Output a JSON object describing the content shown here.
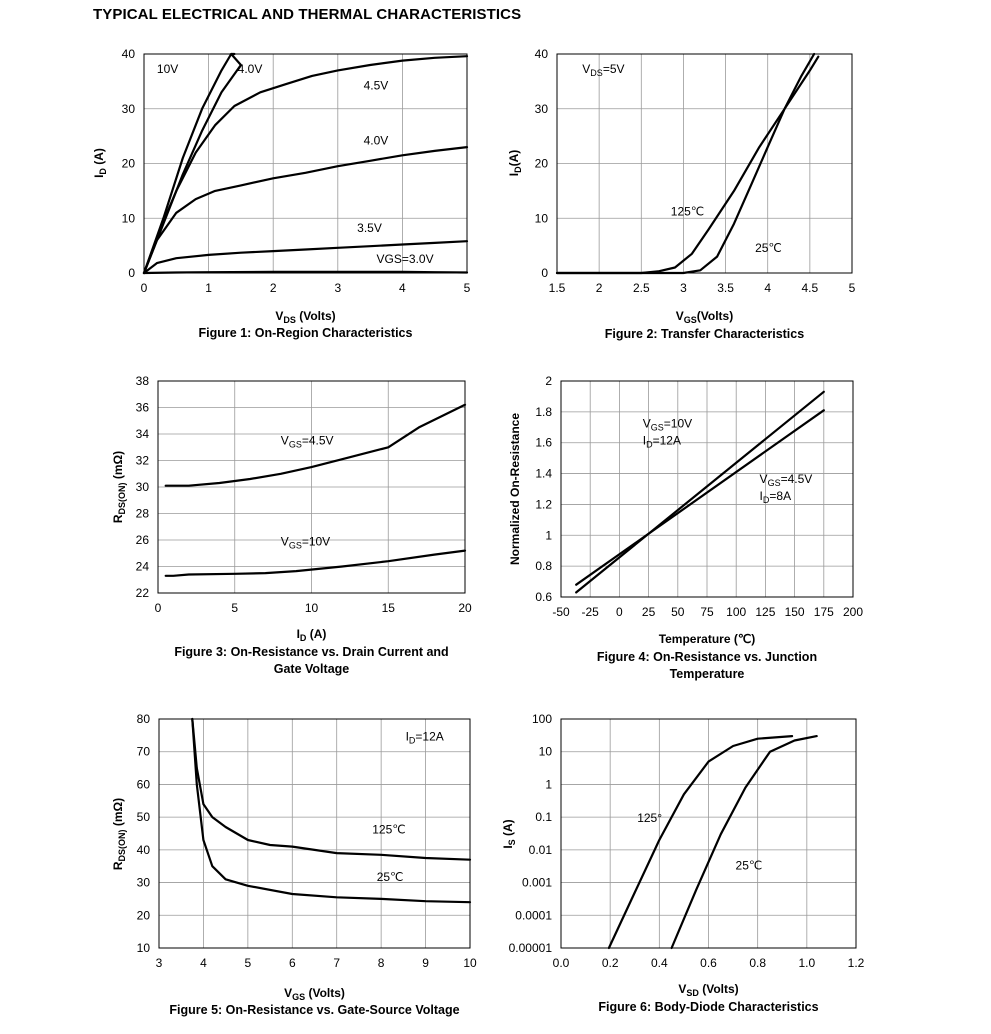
{
  "page_title": "TYPICAL ELECTRICAL AND THERMAL CHARACTERISTICS",
  "chart_data": [
    {
      "id": "fig1",
      "type": "line",
      "caption": [
        "Figure 1: On-Region Characteristics"
      ],
      "xlabel": {
        "main": "V",
        "sub": "DS",
        "rest": " (Volts)"
      },
      "ylabel": {
        "main": "I",
        "sub": "D",
        "rest": " (A)"
      },
      "xlim": [
        0,
        5
      ],
      "ylim": [
        0,
        40
      ],
      "xticks": [
        0,
        1,
        2,
        3,
        4,
        5
      ],
      "yticks": [
        0,
        10,
        20,
        30,
        40
      ],
      "grid": true,
      "series": [
        {
          "points": [
            [
              0,
              0
            ],
            [
              0.3,
              10
            ],
            [
              0.6,
              21
            ],
            [
              0.9,
              30
            ],
            [
              1.2,
              37
            ],
            [
              1.35,
              40
            ]
          ]
        },
        {
          "points": [
            [
              0,
              0
            ],
            [
              0.3,
              9
            ],
            [
              0.6,
              18
            ],
            [
              0.9,
              26
            ],
            [
              1.2,
              33
            ],
            [
              1.5,
              38
            ],
            [
              1.35,
              40
            ],
            [
              1.4,
              40
            ]
          ]
        },
        {
          "points": [
            [
              0,
              0
            ],
            [
              0.25,
              8
            ],
            [
              0.5,
              15
            ],
            [
              0.8,
              22
            ],
            [
              1.1,
              27
            ],
            [
              1.4,
              30.5
            ],
            [
              1.8,
              33
            ],
            [
              2.2,
              34.5
            ],
            [
              2.6,
              36
            ],
            [
              3,
              37
            ],
            [
              3.5,
              38
            ],
            [
              4,
              38.8
            ],
            [
              4.5,
              39.3
            ],
            [
              5,
              39.6
            ]
          ]
        },
        {
          "points": [
            [
              0,
              0
            ],
            [
              0.2,
              6
            ],
            [
              0.5,
              11
            ],
            [
              0.8,
              13.5
            ],
            [
              1.1,
              15
            ],
            [
              1.5,
              16
            ],
            [
              2,
              17.3
            ],
            [
              2.5,
              18.3
            ],
            [
              3,
              19.5
            ],
            [
              3.5,
              20.5
            ],
            [
              4,
              21.5
            ],
            [
              4.5,
              22.3
            ],
            [
              5,
              23
            ]
          ]
        },
        {
          "points": [
            [
              0,
              0
            ],
            [
              0.2,
              1.8
            ],
            [
              0.5,
              2.7
            ],
            [
              1,
              3.3
            ],
            [
              1.5,
              3.7
            ],
            [
              2,
              4
            ],
            [
              2.5,
              4.3
            ],
            [
              3,
              4.6
            ],
            [
              3.5,
              4.9
            ],
            [
              4,
              5.2
            ],
            [
              4.5,
              5.5
            ],
            [
              5,
              5.8
            ]
          ]
        },
        {
          "points": [
            [
              0,
              0
            ],
            [
              0.5,
              0.1
            ],
            [
              1,
              0.15
            ],
            [
              2,
              0.2
            ],
            [
              3,
              0.2
            ],
            [
              4,
              0.2
            ],
            [
              4.5,
              0.15
            ],
            [
              5,
              0.1
            ]
          ]
        }
      ],
      "annotations": [
        {
          "text": "10V",
          "x": 0.2,
          "y": 36.5
        },
        {
          "text": "4.0V",
          "x": 1.45,
          "y": 36.5
        },
        {
          "text": "4.5V",
          "x": 3.4,
          "y": 33.5
        },
        {
          "text": "4.0V",
          "x": 3.4,
          "y": 23.5
        },
        {
          "text": "3.5V",
          "x": 3.3,
          "y": 7.5
        },
        {
          "text": "VGS=3.0V",
          "x": 3.6,
          "y": 1.8
        }
      ]
    },
    {
      "id": "fig2",
      "type": "line",
      "caption": [
        "Figure 2: Transfer Characteristics"
      ],
      "xlabel": {
        "main": "V",
        "sub": "GS",
        "rest": "(Volts)"
      },
      "ylabel": {
        "main": "I",
        "sub": "D",
        "rest": "(A)"
      },
      "xlim": [
        1.5,
        5
      ],
      "ylim": [
        0,
        40
      ],
      "xticks": [
        1.5,
        2,
        2.5,
        3,
        3.5,
        4,
        4.5,
        5
      ],
      "yticks": [
        0,
        10,
        20,
        30,
        40
      ],
      "xticklabels": [
        "1.5",
        "2",
        "2.5",
        "3",
        "3.5",
        "4",
        "4.5",
        "5"
      ],
      "grid": true,
      "series": [
        {
          "points": [
            [
              1.5,
              0
            ],
            [
              2.5,
              0
            ],
            [
              2.7,
              0.3
            ],
            [
              2.9,
              1
            ],
            [
              3.1,
              3.5
            ],
            [
              3.3,
              8
            ],
            [
              3.6,
              15
            ],
            [
              3.9,
              23
            ],
            [
              4.2,
              30
            ],
            [
              4.5,
              37
            ],
            [
              4.6,
              39.5
            ]
          ]
        },
        {
          "points": [
            [
              1.5,
              0
            ],
            [
              3,
              0
            ],
            [
              3.2,
              0.5
            ],
            [
              3.4,
              3
            ],
            [
              3.6,
              9
            ],
            [
              3.8,
              16
            ],
            [
              4,
              23
            ],
            [
              4.2,
              30
            ],
            [
              4.4,
              36
            ],
            [
              4.55,
              40
            ]
          ]
        }
      ],
      "annotations": [
        {
          "text": "V",
          "sub": "DS",
          "tail": "=5V",
          "x": 1.8,
          "y": 36.5
        },
        {
          "text": "125℃",
          "x": 2.85,
          "y": 10.5
        },
        {
          "text": "25℃",
          "x": 3.85,
          "y": 3.8
        }
      ]
    },
    {
      "id": "fig3",
      "type": "line",
      "caption": [
        "Figure 3: On-Resistance vs. Drain Current and",
        "Gate Voltage"
      ],
      "xlabel": {
        "main": "I",
        "sub": "D",
        "rest": " (A)"
      },
      "ylabel": {
        "main": "R",
        "sub": "DS(ON)",
        "rest": " (mΩ)"
      },
      "xlim": [
        0,
        20
      ],
      "ylim": [
        22,
        38
      ],
      "xticks": [
        0,
        5,
        10,
        15,
        20
      ],
      "yticks": [
        22,
        24,
        26,
        28,
        30,
        32,
        34,
        36,
        38
      ],
      "grid": true,
      "series": [
        {
          "points": [
            [
              0.5,
              30.1
            ],
            [
              2,
              30.1
            ],
            [
              4,
              30.3
            ],
            [
              6,
              30.6
            ],
            [
              8,
              31
            ],
            [
              10,
              31.5
            ],
            [
              12,
              32.1
            ],
            [
              15,
              33
            ],
            [
              17,
              34.5
            ],
            [
              20,
              36.2
            ]
          ]
        },
        {
          "points": [
            [
              0.5,
              23.3
            ],
            [
              1,
              23.3
            ],
            [
              2,
              23.4
            ],
            [
              5,
              23.45
            ],
            [
              7,
              23.5
            ],
            [
              9,
              23.65
            ],
            [
              12,
              24
            ],
            [
              15,
              24.4
            ],
            [
              18,
              24.9
            ],
            [
              20,
              25.2
            ]
          ]
        }
      ],
      "annotations": [
        {
          "text": "V",
          "sub": "GS",
          "tail": "=4.5V",
          "x": 8,
          "y": 33.2
        },
        {
          "text": "V",
          "sub": "GS",
          "tail": "=10V",
          "x": 8,
          "y": 25.6
        }
      ]
    },
    {
      "id": "fig4",
      "type": "line",
      "caption": [
        "Figure 4: On-Resistance vs. Junction",
        "Temperature"
      ],
      "xlabel": {
        "main": "Temperature (℃)",
        "sub": "",
        "rest": ""
      },
      "ylabel": {
        "main": "Normalized On-Resistance",
        "sub": "",
        "rest": ""
      },
      "xlim": [
        -50,
        200
      ],
      "ylim": [
        0.6,
        2
      ],
      "xticks": [
        -50,
        -25,
        0,
        25,
        50,
        75,
        100,
        125,
        150,
        175,
        200
      ],
      "yticks": [
        0.6,
        0.8,
        1,
        1.2,
        1.4,
        1.6,
        1.8,
        2
      ],
      "yticklabels": [
        "0.6",
        "0.8",
        "1",
        "1.2",
        "1.4",
        "1.6",
        "1.8",
        "2"
      ],
      "grid": true,
      "series": [
        {
          "points": [
            [
              -37,
              0.63
            ],
            [
              175,
              1.93
            ]
          ]
        },
        {
          "points": [
            [
              -37,
              0.68
            ],
            [
              175,
              1.81
            ]
          ]
        }
      ],
      "annotations": [
        {
          "text": "V",
          "sub": "GS",
          "tail": "=10V",
          "x": 20,
          "y": 1.7
        },
        {
          "text": "I",
          "sub": "D",
          "tail": "=12A",
          "x": 20,
          "y": 1.59
        },
        {
          "text": "V",
          "sub": "GS",
          "tail": "=4.5V",
          "x": 120,
          "y": 1.34
        },
        {
          "text": "I",
          "sub": "D",
          "tail": "=8A",
          "x": 120,
          "y": 1.23
        }
      ]
    },
    {
      "id": "fig5",
      "type": "line",
      "caption": [
        "Figure 5: On-Resistance vs. Gate-Source Voltage"
      ],
      "xlabel": {
        "main": "V",
        "sub": "GS",
        "rest": " (Volts)"
      },
      "ylabel": {
        "main": "R",
        "sub": "DS(ON)",
        "rest": " (mΩ)"
      },
      "xlim": [
        3,
        10
      ],
      "ylim": [
        10,
        80
      ],
      "xticks": [
        3,
        4,
        5,
        6,
        7,
        8,
        9,
        10
      ],
      "yticks": [
        10,
        20,
        30,
        40,
        50,
        60,
        70,
        80
      ],
      "grid": true,
      "series": [
        {
          "points": [
            [
              3.75,
              80
            ],
            [
              3.85,
              65
            ],
            [
              4,
              54
            ],
            [
              4.2,
              50
            ],
            [
              4.5,
              47
            ],
            [
              5,
              43
            ],
            [
              5.5,
              41.5
            ],
            [
              6,
              41
            ],
            [
              7,
              39
            ],
            [
              8,
              38.5
            ],
            [
              9,
              37.5
            ],
            [
              10,
              37
            ]
          ]
        },
        {
          "points": [
            [
              3.75,
              80
            ],
            [
              3.85,
              60
            ],
            [
              4,
              43
            ],
            [
              4.2,
              35
            ],
            [
              4.5,
              31
            ],
            [
              5,
              29
            ],
            [
              6,
              26.5
            ],
            [
              7,
              25.5
            ],
            [
              8,
              25
            ],
            [
              9,
              24.3
            ],
            [
              10,
              24
            ]
          ]
        }
      ],
      "annotations": [
        {
          "text": "I",
          "sub": "D",
          "tail": "=12A",
          "x": 8.55,
          "y": 73.5
        },
        {
          "text": "125℃",
          "x": 7.8,
          "y": 45
        },
        {
          "text": "25℃",
          "x": 7.9,
          "y": 30.5
        }
      ]
    },
    {
      "id": "fig6",
      "type": "line",
      "log_y": true,
      "caption": [
        "Figure 6: Body-Diode Characteristics"
      ],
      "xlabel": {
        "main": "V",
        "sub": "SD",
        "rest": " (Volts)"
      },
      "ylabel": {
        "main": "I",
        "sub": "S",
        "rest": " (A)"
      },
      "xlim": [
        0,
        1.2
      ],
      "ylim": [
        1e-05,
        100
      ],
      "xticks": [
        0,
        0.2,
        0.4,
        0.6,
        0.8,
        1,
        1.2
      ],
      "xticklabels": [
        "0.0",
        "0.2",
        "0.4",
        "0.6",
        "0.8",
        "1.0",
        "1.2"
      ],
      "yticks": [
        1e-05,
        0.0001,
        0.001,
        0.01,
        0.1,
        1,
        10,
        100
      ],
      "yticklabels": [
        "0.00001",
        "0.0001",
        "0.001",
        "0.01",
        "0.1",
        "1",
        "10",
        "100"
      ],
      "grid": true,
      "series": [
        {
          "points": [
            [
              0.195,
              1e-05
            ],
            [
              0.3,
              0.0005
            ],
            [
              0.4,
              0.02
            ],
            [
              0.5,
              0.5
            ],
            [
              0.6,
              5
            ],
            [
              0.7,
              15
            ],
            [
              0.8,
              25
            ],
            [
              0.94,
              30
            ]
          ]
        },
        {
          "points": [
            [
              0.45,
              1e-05
            ],
            [
              0.55,
              0.0006
            ],
            [
              0.65,
              0.03
            ],
            [
              0.75,
              0.8
            ],
            [
              0.85,
              10
            ],
            [
              0.95,
              22
            ],
            [
              1.04,
              30
            ]
          ]
        }
      ],
      "annotations": [
        {
          "text": "125°",
          "x": 0.31,
          "y": 0.07
        },
        {
          "text": "25℃",
          "x": 0.71,
          "y": 0.0025
        }
      ]
    }
  ]
}
